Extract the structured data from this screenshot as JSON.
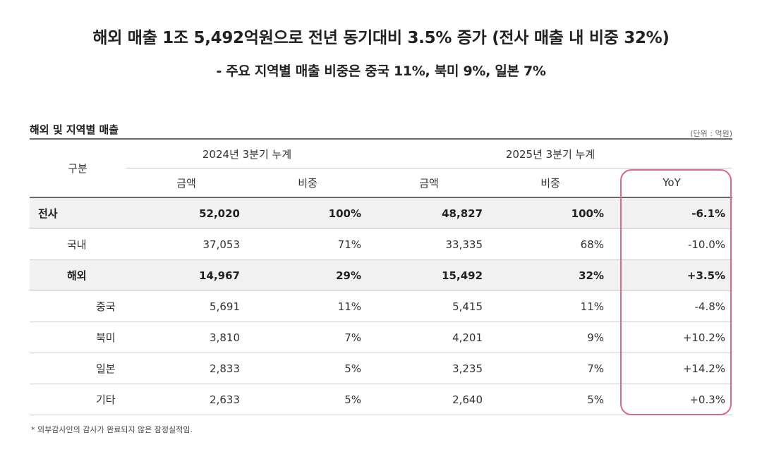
{
  "title": "해외 매출 1조 5,492억원으로 전년 동기대비 3.5% 증가 (전사 매출 내 비중 32%)",
  "subtitle": "- 주요 지역별 매출 비중은 중국 11%, 북미 9%, 일본 7%",
  "section_title": "해외 및 지역별 매출",
  "unit": "(단위 : 억원)",
  "table": {
    "header_category": "구분",
    "period_2024": "2024년 3분기 누계",
    "period_2025": "2025년 3분기 누계",
    "col_amount": "금액",
    "col_share": "비중",
    "col_yoy": "YoY",
    "rows": [
      {
        "label": "전사",
        "amount_2024": "52,020",
        "share_2024": "100%",
        "amount_2025": "48,827",
        "share_2025": "100%",
        "yoy": "-6.1%"
      },
      {
        "label": "국내",
        "amount_2024": "37,053",
        "share_2024": "71%",
        "amount_2025": "33,335",
        "share_2025": "68%",
        "yoy": "-10.0%"
      },
      {
        "label": "해외",
        "amount_2024": "14,967",
        "share_2024": "29%",
        "amount_2025": "15,492",
        "share_2025": "32%",
        "yoy": "+3.5%"
      },
      {
        "label": "중국",
        "amount_2024": "5,691",
        "share_2024": "11%",
        "amount_2025": "5,415",
        "share_2025": "11%",
        "yoy": "-4.8%"
      },
      {
        "label": "북미",
        "amount_2024": "3,810",
        "share_2024": "7%",
        "amount_2025": "4,201",
        "share_2025": "9%",
        "yoy": "+10.2%"
      },
      {
        "label": "일본",
        "amount_2024": "2,833",
        "share_2024": "5%",
        "amount_2025": "3,235",
        "share_2025": "7%",
        "yoy": "+14.2%"
      },
      {
        "label": "기타",
        "amount_2024": "2,633",
        "share_2024": "5%",
        "amount_2025": "2,640",
        "share_2025": "5%",
        "yoy": "+0.3%"
      }
    ]
  },
  "footnote": "* 외부감사인의 감사가 완료되지 않은 잠정실적임.",
  "colors": {
    "highlight_border": "#d76a86",
    "bold_row_bg": "#f1f1f1",
    "rule": "#6b6b6b"
  }
}
